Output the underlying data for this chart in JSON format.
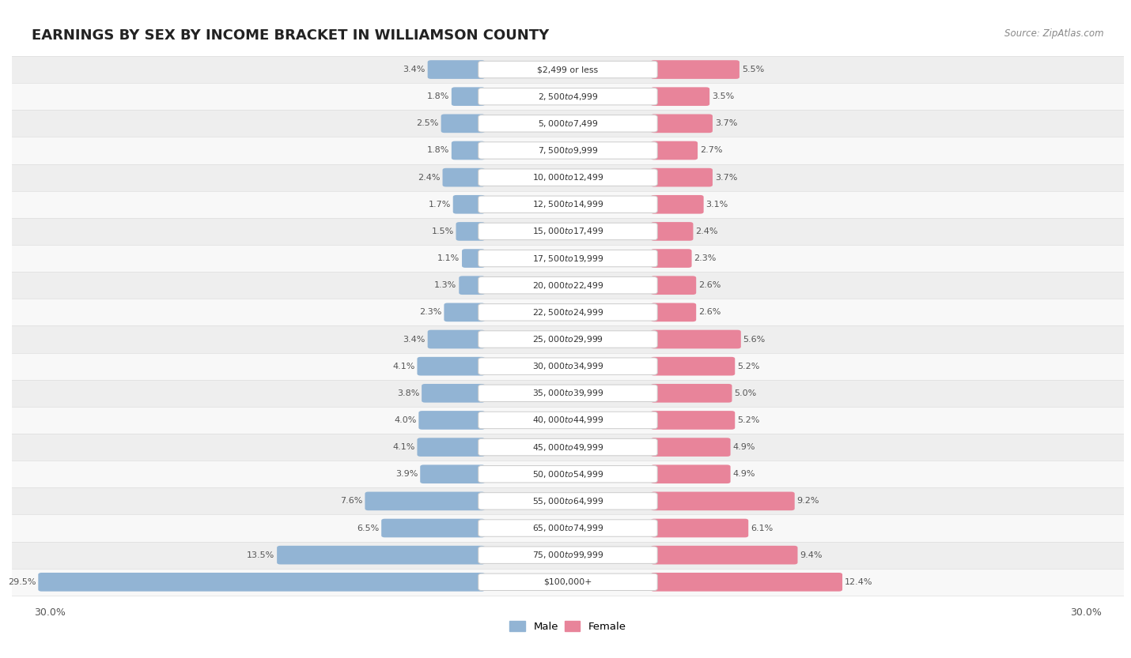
{
  "title": "EARNINGS BY SEX BY INCOME BRACKET IN WILLIAMSON COUNTY",
  "source": "Source: ZipAtlas.com",
  "categories": [
    "$2,499 or less",
    "$2,500 to $4,999",
    "$5,000 to $7,499",
    "$7,500 to $9,999",
    "$10,000 to $12,499",
    "$12,500 to $14,999",
    "$15,000 to $17,499",
    "$17,500 to $19,999",
    "$20,000 to $22,499",
    "$22,500 to $24,999",
    "$25,000 to $29,999",
    "$30,000 to $34,999",
    "$35,000 to $39,999",
    "$40,000 to $44,999",
    "$45,000 to $49,999",
    "$50,000 to $54,999",
    "$55,000 to $64,999",
    "$65,000 to $74,999",
    "$75,000 to $99,999",
    "$100,000+"
  ],
  "male_values": [
    3.4,
    1.8,
    2.5,
    1.8,
    2.4,
    1.7,
    1.5,
    1.1,
    1.3,
    2.3,
    3.4,
    4.1,
    3.8,
    4.0,
    4.1,
    3.9,
    7.6,
    6.5,
    13.5,
    29.5
  ],
  "female_values": [
    5.5,
    3.5,
    3.7,
    2.7,
    3.7,
    3.1,
    2.4,
    2.3,
    2.6,
    2.6,
    5.6,
    5.2,
    5.0,
    5.2,
    4.9,
    4.9,
    9.2,
    6.1,
    9.4,
    12.4
  ],
  "male_color": "#92b4d4",
  "female_color": "#e8849a",
  "row_bg_even": "#eeeeee",
  "row_bg_odd": "#f8f8f8",
  "xlim": 30.0,
  "title_fontsize": 13,
  "label_fontsize": 8,
  "cat_fontsize": 7.8,
  "axis_fontsize": 9
}
